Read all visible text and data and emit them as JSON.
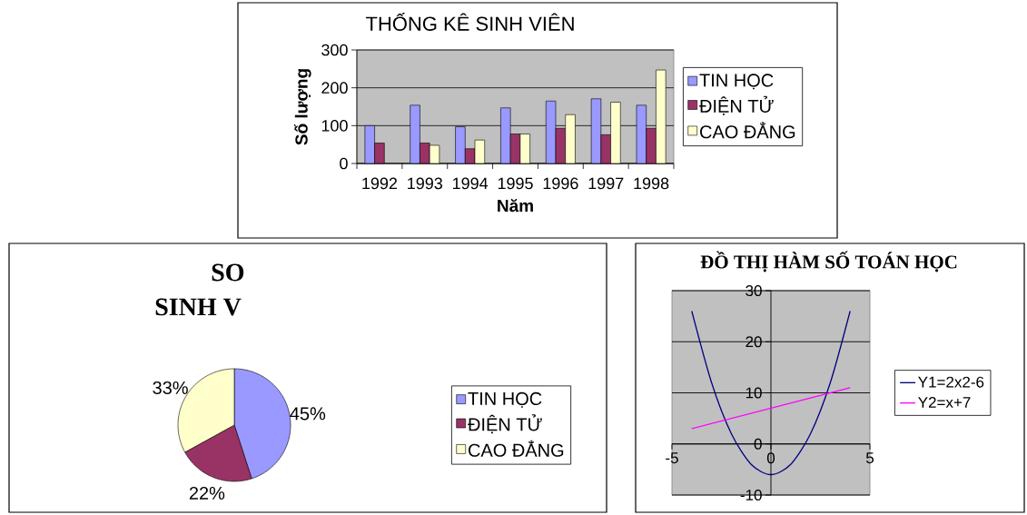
{
  "chart_data": [
    {
      "type": "bar",
      "title": "THỐNG KÊ SINH VIÊN",
      "xlabel": "Năm",
      "ylabel": "Số lượng",
      "categories": [
        "1992",
        "1993",
        "1994",
        "1995",
        "1996",
        "1997",
        "1998"
      ],
      "series": [
        {
          "name": "TIN HỌC",
          "color": "#9999ff",
          "values": [
            100,
            154,
            97,
            147,
            165,
            171,
            154
          ]
        },
        {
          "name": "ĐIỆN TỬ",
          "color": "#993366",
          "values": [
            54,
            54,
            39,
            78,
            93,
            76,
            93
          ]
        },
        {
          "name": "CAO ĐẲNG",
          "color": "#ffffcc",
          "values": [
            null,
            48,
            62,
            78,
            129,
            162,
            247
          ]
        }
      ],
      "ylim": [
        0,
        300
      ],
      "yticks": [
        0,
        100,
        200,
        300
      ],
      "grid": "y",
      "legend": "right"
    },
    {
      "type": "pie",
      "title": "SO",
      "subtitle": "SINH V",
      "categories": [
        "TIN HỌC",
        "ĐIỆN TỬ",
        "CAO ĐẲNG"
      ],
      "values": [
        45,
        22,
        33
      ],
      "colors": [
        "#9999ff",
        "#993366",
        "#ffffcc"
      ],
      "value_labels": [
        "45%",
        "22%",
        "33%"
      ],
      "legend": "right"
    },
    {
      "type": "line",
      "title": "ĐỒ THỊ HÀM SỐ TOÁN HỌC",
      "x": [
        -4,
        -3,
        -2,
        -1,
        0,
        1,
        2,
        3,
        4
      ],
      "series": [
        {
          "name": "Y1=2x2-6",
          "color": "#000080",
          "values": [
            26,
            12,
            2,
            -4,
            -6,
            -4,
            2,
            12,
            26
          ]
        },
        {
          "name": "Y2=x+7",
          "color": "#ff00ff",
          "x": [
            -4,
            4
          ],
          "values": [
            3,
            11
          ]
        }
      ],
      "xlim": [
        -5,
        5
      ],
      "xticks": [
        -5,
        0,
        5
      ],
      "ylim": [
        -10,
        30
      ],
      "yticks": [
        -10,
        0,
        10,
        20,
        30
      ],
      "grid": "y",
      "legend": "right"
    }
  ]
}
